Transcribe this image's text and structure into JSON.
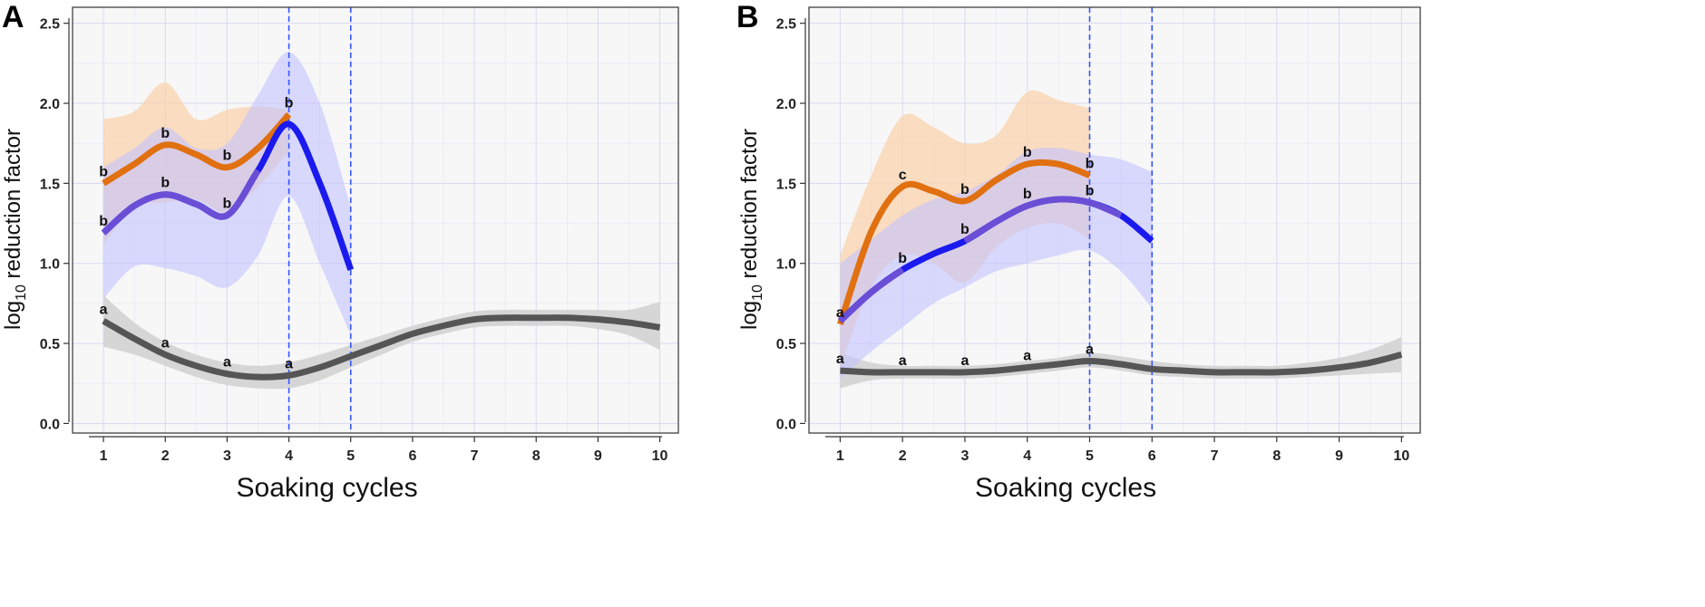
{
  "colors": {
    "panel_bg": "#f7f7f7",
    "grid": "#d9d9f2",
    "gray": "#555555",
    "gray_band": "#d4d4d4",
    "orange": "#e07010",
    "orange_band": "#fbd3ad",
    "purple": "#6a4fd6",
    "blue": "#1a1aee",
    "blue_band": "#c3c3ff",
    "vline": "#3355ff"
  },
  "chart_data": [
    {
      "type": "line",
      "panel_label": "A",
      "xlabel": "Soaking cycles",
      "ylabel_main": "log",
      "ylabel_sub": "10",
      "ylabel_rest": " reduction factor",
      "xlim": [
        0.5,
        10.3
      ],
      "ylim": [
        -0.06,
        2.6
      ],
      "xticks": [
        1,
        2,
        3,
        4,
        5,
        6,
        7,
        8,
        9,
        10
      ],
      "yticks": [
        0.0,
        0.5,
        1.0,
        1.5,
        2.0,
        2.5
      ],
      "ytick_labels": [
        "0.0",
        "0.5",
        "1.0",
        "1.5",
        "2.0",
        "2.5"
      ],
      "vlines": [
        4,
        5
      ],
      "series": [
        {
          "name": "gray",
          "x": [
            1,
            1.5,
            2,
            2.5,
            3,
            3.5,
            4,
            4.5,
            5,
            5.5,
            6,
            6.5,
            7,
            7.5,
            8,
            8.5,
            9,
            9.5,
            10
          ],
          "y": [
            0.64,
            0.53,
            0.43,
            0.36,
            0.31,
            0.29,
            0.3,
            0.35,
            0.42,
            0.49,
            0.56,
            0.61,
            0.65,
            0.66,
            0.66,
            0.66,
            0.65,
            0.63,
            0.6
          ],
          "lower": [
            0.48,
            0.43,
            0.36,
            0.29,
            0.24,
            0.22,
            0.22,
            0.27,
            0.35,
            0.43,
            0.51,
            0.56,
            0.6,
            0.61,
            0.61,
            0.61,
            0.59,
            0.55,
            0.46
          ],
          "upper": [
            0.8,
            0.63,
            0.51,
            0.43,
            0.38,
            0.36,
            0.38,
            0.43,
            0.49,
            0.55,
            0.61,
            0.66,
            0.7,
            0.71,
            0.71,
            0.71,
            0.71,
            0.71,
            0.76
          ],
          "markers": [
            {
              "x": 1,
              "y": 0.64,
              "label": "a"
            },
            {
              "x": 2,
              "y": 0.43,
              "label": "a"
            },
            {
              "x": 3,
              "y": 0.31,
              "label": "a"
            },
            {
              "x": 4,
              "y": 0.3,
              "label": "a"
            }
          ]
        },
        {
          "name": "orange",
          "x": [
            1,
            1.5,
            2,
            2.5,
            3,
            3.5,
            4
          ],
          "y": [
            1.5,
            1.62,
            1.74,
            1.68,
            1.6,
            1.72,
            1.93
          ],
          "lower": [
            1.12,
            1.35,
            1.38,
            1.4,
            1.32,
            1.48,
            1.7
          ],
          "upper": [
            1.9,
            1.95,
            2.13,
            1.9,
            1.96,
            1.98,
            1.96
          ],
          "markers": [
            {
              "x": 1,
              "y": 1.5,
              "label": "b"
            },
            {
              "x": 2,
              "y": 1.74,
              "label": "b"
            },
            {
              "x": 3,
              "y": 1.6,
              "label": "b"
            },
            {
              "x": 4,
              "y": 1.93,
              "label": "b"
            }
          ]
        },
        {
          "name": "purple-blue",
          "x": [
            1,
            1.5,
            2,
            2.5,
            3,
            3.5,
            4,
            4.5,
            5
          ],
          "y": [
            1.19,
            1.36,
            1.43,
            1.37,
            1.3,
            1.58,
            1.87,
            1.5,
            0.96
          ],
          "lower": [
            0.78,
            0.98,
            0.97,
            0.92,
            0.85,
            1.05,
            1.42,
            1.0,
            0.55
          ],
          "upper": [
            1.6,
            1.72,
            1.85,
            1.72,
            1.75,
            2.05,
            2.32,
            2.0,
            1.35
          ],
          "markers": [
            {
              "x": 1,
              "y": 1.19,
              "label": "b"
            },
            {
              "x": 2,
              "y": 1.43,
              "label": "b"
            },
            {
              "x": 3,
              "y": 1.3,
              "label": "b"
            }
          ]
        }
      ]
    },
    {
      "type": "line",
      "panel_label": "B",
      "xlabel": "Soaking cycles",
      "ylabel_main": "log",
      "ylabel_sub": "10",
      "ylabel_rest": " reduction factor",
      "xlim": [
        0.5,
        10.3
      ],
      "ylim": [
        -0.06,
        2.6
      ],
      "xticks": [
        1,
        2,
        3,
        4,
        5,
        6,
        7,
        8,
        9,
        10
      ],
      "yticks": [
        0.0,
        0.5,
        1.0,
        1.5,
        2.0,
        2.5
      ],
      "ytick_labels": [
        "0.0",
        "0.5",
        "1.0",
        "1.5",
        "2.0",
        "2.5"
      ],
      "vlines": [
        5,
        6
      ],
      "series": [
        {
          "name": "gray",
          "x": [
            1,
            1.5,
            2,
            2.5,
            3,
            3.5,
            4,
            4.5,
            5,
            5.5,
            6,
            6.5,
            7,
            7.5,
            8,
            8.5,
            9,
            9.5,
            10
          ],
          "y": [
            0.33,
            0.32,
            0.32,
            0.32,
            0.32,
            0.33,
            0.35,
            0.37,
            0.39,
            0.37,
            0.34,
            0.33,
            0.32,
            0.32,
            0.32,
            0.33,
            0.35,
            0.38,
            0.43
          ],
          "lower": [
            0.22,
            0.27,
            0.28,
            0.28,
            0.28,
            0.29,
            0.31,
            0.33,
            0.35,
            0.33,
            0.3,
            0.29,
            0.28,
            0.28,
            0.28,
            0.29,
            0.3,
            0.31,
            0.32
          ],
          "upper": [
            0.44,
            0.38,
            0.36,
            0.36,
            0.36,
            0.37,
            0.39,
            0.41,
            0.44,
            0.42,
            0.39,
            0.37,
            0.36,
            0.36,
            0.36,
            0.38,
            0.41,
            0.46,
            0.54
          ],
          "markers": [
            {
              "x": 1,
              "y": 0.33,
              "label": "a"
            },
            {
              "x": 2,
              "y": 0.32,
              "label": "a"
            },
            {
              "x": 3,
              "y": 0.32,
              "label": "a"
            },
            {
              "x": 4,
              "y": 0.35,
              "label": "a"
            },
            {
              "x": 5,
              "y": 0.39,
              "label": "a"
            }
          ]
        },
        {
          "name": "orange",
          "x": [
            1,
            1.5,
            2,
            2.5,
            3,
            3.5,
            4,
            4.5,
            5
          ],
          "y": [
            0.62,
            1.2,
            1.48,
            1.45,
            1.39,
            1.52,
            1.62,
            1.62,
            1.55
          ],
          "lower": [
            0.35,
            0.85,
            1.05,
            1.0,
            0.88,
            1.1,
            1.22,
            1.25,
            1.15
          ],
          "upper": [
            1.05,
            1.55,
            1.92,
            1.85,
            1.75,
            1.8,
            2.07,
            2.02,
            1.97
          ],
          "markers": [
            {
              "x": 1,
              "y": 0.62,
              "label": "a"
            },
            {
              "x": 2,
              "y": 1.48,
              "label": "c"
            },
            {
              "x": 3,
              "y": 1.39,
              "label": "b"
            },
            {
              "x": 4,
              "y": 1.62,
              "label": "b"
            },
            {
              "x": 5,
              "y": 1.55,
              "label": "b"
            }
          ]
        },
        {
          "name": "purple-blue",
          "x": [
            1,
            1.5,
            2,
            2.5,
            3,
            3.5,
            4,
            4.5,
            5,
            5.5,
            6
          ],
          "y": [
            0.64,
            0.82,
            0.96,
            1.06,
            1.14,
            1.26,
            1.36,
            1.4,
            1.38,
            1.3,
            1.14
          ],
          "lower": [
            0.28,
            0.45,
            0.6,
            0.75,
            0.85,
            0.95,
            1.0,
            1.05,
            1.08,
            0.95,
            0.72
          ],
          "upper": [
            1.0,
            1.15,
            1.3,
            1.4,
            1.45,
            1.55,
            1.7,
            1.72,
            1.68,
            1.65,
            1.57
          ],
          "markers": [
            {
              "x": 2,
              "y": 0.96,
              "label": "b"
            },
            {
              "x": 3,
              "y": 1.14,
              "label": "b"
            },
            {
              "x": 4,
              "y": 1.36,
              "label": "b"
            },
            {
              "x": 5,
              "y": 1.38,
              "label": "b"
            }
          ]
        }
      ]
    }
  ]
}
